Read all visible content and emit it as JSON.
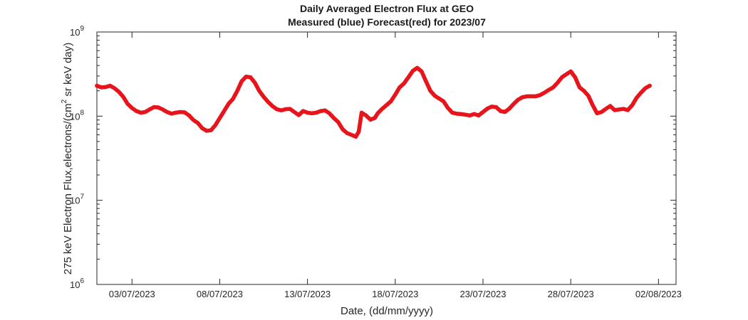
{
  "chart_data": {
    "type": "scatter",
    "title": "Daily Averaged Electron Flux at GEO",
    "subtitle": "Measured (blue) Forecast(red) for 2023/07",
    "xlabel": "Date, (dd/mm/yyyy)",
    "ylabel": "275 keV Electron Flux,electrons/(cm² sr keV day)",
    "ylabel_parts": {
      "before": "275 keV Electron Flux,electrons/(cm",
      "sup": "2",
      "after": " sr keV day)"
    },
    "yscale": "log",
    "xlim": [
      "2023-07-01",
      "2023-08-03"
    ],
    "ylim": [
      1000000,
      1000000000
    ],
    "grid": false,
    "x_ticks": [
      {
        "date": "2023-07-03",
        "label": "03/07/2023"
      },
      {
        "date": "2023-07-08",
        "label": "08/07/2023"
      },
      {
        "date": "2023-07-13",
        "label": "13/07/2023"
      },
      {
        "date": "2023-07-18",
        "label": "18/07/2023"
      },
      {
        "date": "2023-07-23",
        "label": "23/07/2023"
      },
      {
        "date": "2023-07-28",
        "label": "28/07/2023"
      },
      {
        "date": "2023-08-02",
        "label": "02/08/2023"
      }
    ],
    "y_ticks": [
      {
        "value": 1000000,
        "base": "10",
        "exp": "6"
      },
      {
        "value": 10000000,
        "base": "10",
        "exp": "7"
      },
      {
        "value": 100000000,
        "base": "10",
        "exp": "8"
      },
      {
        "value": 1000000000,
        "base": "10",
        "exp": "9"
      }
    ],
    "series": [
      {
        "color": "#e8141c",
        "points": [
          [
            "2023-07-01 00:00",
            230000000
          ],
          [
            "2023-07-01 06:00",
            220000000
          ],
          [
            "2023-07-01 12:00",
            222000000
          ],
          [
            "2023-07-01 18:00",
            230000000
          ],
          [
            "2023-07-02 00:00",
            215000000
          ],
          [
            "2023-07-02 06:00",
            195000000
          ],
          [
            "2023-07-02 12:00",
            170000000
          ],
          [
            "2023-07-02 18:00",
            140000000
          ],
          [
            "2023-07-03 00:00",
            125000000
          ],
          [
            "2023-07-03 06:00",
            115000000
          ],
          [
            "2023-07-03 12:00",
            110000000
          ],
          [
            "2023-07-03 18:00",
            112000000
          ],
          [
            "2023-07-04 00:00",
            120000000
          ],
          [
            "2023-07-04 06:00",
            128000000
          ],
          [
            "2023-07-04 12:00",
            127000000
          ],
          [
            "2023-07-04 18:00",
            120000000
          ],
          [
            "2023-07-05 00:00",
            112000000
          ],
          [
            "2023-07-05 06:00",
            107000000
          ],
          [
            "2023-07-05 12:00",
            110000000
          ],
          [
            "2023-07-05 18:00",
            112000000
          ],
          [
            "2023-07-06 00:00",
            111000000
          ],
          [
            "2023-07-06 06:00",
            102000000
          ],
          [
            "2023-07-06 12:00",
            90000000
          ],
          [
            "2023-07-06 18:00",
            83000000
          ],
          [
            "2023-07-07 00:00",
            72000000
          ],
          [
            "2023-07-07 06:00",
            67000000
          ],
          [
            "2023-07-07 12:00",
            68000000
          ],
          [
            "2023-07-07 18:00",
            78000000
          ],
          [
            "2023-07-08 00:00",
            95000000
          ],
          [
            "2023-07-08 06:00",
            115000000
          ],
          [
            "2023-07-08 12:00",
            140000000
          ],
          [
            "2023-07-08 18:00",
            160000000
          ],
          [
            "2023-07-09 00:00",
            200000000
          ],
          [
            "2023-07-09 06:00",
            260000000
          ],
          [
            "2023-07-09 12:00",
            295000000
          ],
          [
            "2023-07-09 18:00",
            290000000
          ],
          [
            "2023-07-10 00:00",
            250000000
          ],
          [
            "2023-07-10 06:00",
            200000000
          ],
          [
            "2023-07-10 12:00",
            170000000
          ],
          [
            "2023-07-10 18:00",
            148000000
          ],
          [
            "2023-07-11 00:00",
            132000000
          ],
          [
            "2023-07-11 06:00",
            121000000
          ],
          [
            "2023-07-11 12:00",
            117000000
          ],
          [
            "2023-07-11 18:00",
            121000000
          ],
          [
            "2023-07-12 00:00",
            122000000
          ],
          [
            "2023-07-12 06:00",
            112000000
          ],
          [
            "2023-07-12 12:00",
            103000000
          ],
          [
            "2023-07-12 18:00",
            115000000
          ],
          [
            "2023-07-13 00:00",
            110000000
          ],
          [
            "2023-07-13 06:00",
            108000000
          ],
          [
            "2023-07-13 12:00",
            110000000
          ],
          [
            "2023-07-13 18:00",
            115000000
          ],
          [
            "2023-07-14 00:00",
            117000000
          ],
          [
            "2023-07-14 06:00",
            108000000
          ],
          [
            "2023-07-14 12:00",
            95000000
          ],
          [
            "2023-07-14 18:00",
            85000000
          ],
          [
            "2023-07-15 00:00",
            70000000
          ],
          [
            "2023-07-15 06:00",
            63000000
          ],
          [
            "2023-07-15 12:00",
            60000000
          ],
          [
            "2023-07-15 18:00",
            57000000
          ],
          [
            "2023-07-15 22:00",
            65000000
          ],
          [
            "2023-07-16 02:00",
            110000000
          ],
          [
            "2023-07-16 08:00",
            102000000
          ],
          [
            "2023-07-16 14:00",
            91000000
          ],
          [
            "2023-07-16 20:00",
            95000000
          ],
          [
            "2023-07-17 00:00",
            108000000
          ],
          [
            "2023-07-17 06:00",
            122000000
          ],
          [
            "2023-07-17 12:00",
            135000000
          ],
          [
            "2023-07-17 18:00",
            150000000
          ],
          [
            "2023-07-18 00:00",
            180000000
          ],
          [
            "2023-07-18 06:00",
            220000000
          ],
          [
            "2023-07-18 12:00",
            245000000
          ],
          [
            "2023-07-18 18:00",
            290000000
          ],
          [
            "2023-07-19 00:00",
            345000000
          ],
          [
            "2023-07-19 06:00",
            375000000
          ],
          [
            "2023-07-19 12:00",
            340000000
          ],
          [
            "2023-07-19 18:00",
            260000000
          ],
          [
            "2023-07-20 00:00",
            200000000
          ],
          [
            "2023-07-20 06:00",
            175000000
          ],
          [
            "2023-07-20 12:00",
            162000000
          ],
          [
            "2023-07-20 18:00",
            150000000
          ],
          [
            "2023-07-21 00:00",
            125000000
          ],
          [
            "2023-07-21 06:00",
            110000000
          ],
          [
            "2023-07-21 12:00",
            107000000
          ],
          [
            "2023-07-21 18:00",
            106000000
          ],
          [
            "2023-07-22 00:00",
            104000000
          ],
          [
            "2023-07-22 06:00",
            102000000
          ],
          [
            "2023-07-22 12:00",
            106000000
          ],
          [
            "2023-07-22 18:00",
            102000000
          ],
          [
            "2023-07-23 00:00",
            112000000
          ],
          [
            "2023-07-23 06:00",
            123000000
          ],
          [
            "2023-07-23 12:00",
            130000000
          ],
          [
            "2023-07-23 18:00",
            128000000
          ],
          [
            "2023-07-24 00:00",
            115000000
          ],
          [
            "2023-07-24 06:00",
            112000000
          ],
          [
            "2023-07-24 12:00",
            123000000
          ],
          [
            "2023-07-24 18:00",
            140000000
          ],
          [
            "2023-07-25 00:00",
            157000000
          ],
          [
            "2023-07-25 06:00",
            168000000
          ],
          [
            "2023-07-25 12:00",
            172000000
          ],
          [
            "2023-07-25 18:00",
            172000000
          ],
          [
            "2023-07-26 00:00",
            172000000
          ],
          [
            "2023-07-26 06:00",
            178000000
          ],
          [
            "2023-07-26 12:00",
            190000000
          ],
          [
            "2023-07-26 18:00",
            205000000
          ],
          [
            "2023-07-27 00:00",
            220000000
          ],
          [
            "2023-07-27 06:00",
            250000000
          ],
          [
            "2023-07-27 12:00",
            290000000
          ],
          [
            "2023-07-27 18:00",
            315000000
          ],
          [
            "2023-07-28 00:00",
            340000000
          ],
          [
            "2023-07-28 06:00",
            290000000
          ],
          [
            "2023-07-28 12:00",
            220000000
          ],
          [
            "2023-07-28 18:00",
            200000000
          ],
          [
            "2023-07-29 00:00",
            175000000
          ],
          [
            "2023-07-29 06:00",
            135000000
          ],
          [
            "2023-07-29 12:00",
            108000000
          ],
          [
            "2023-07-29 18:00",
            112000000
          ],
          [
            "2023-07-30 00:00",
            122000000
          ],
          [
            "2023-07-30 06:00",
            132000000
          ],
          [
            "2023-07-30 12:00",
            118000000
          ],
          [
            "2023-07-30 18:00",
            120000000
          ],
          [
            "2023-07-31 00:00",
            122000000
          ],
          [
            "2023-07-31 06:00",
            118000000
          ],
          [
            "2023-07-31 12:00",
            135000000
          ],
          [
            "2023-07-31 18:00",
            165000000
          ],
          [
            "2023-08-01 00:00",
            190000000
          ],
          [
            "2023-08-01 06:00",
            215000000
          ],
          [
            "2023-08-01 12:00",
            230000000
          ]
        ]
      }
    ]
  }
}
